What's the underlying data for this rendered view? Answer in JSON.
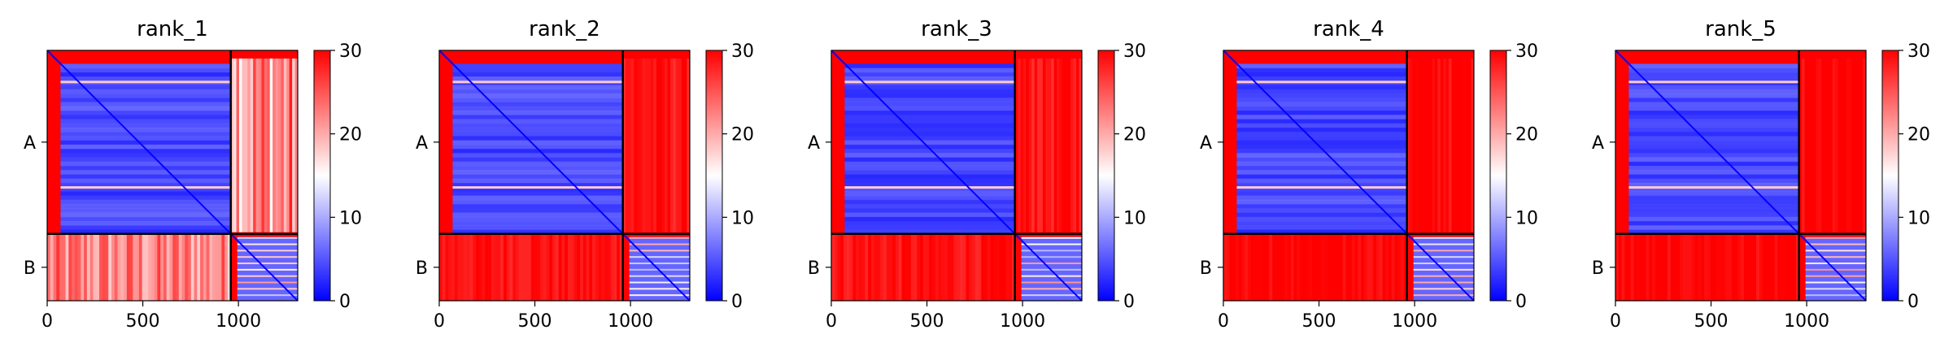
{
  "chart_data": {
    "type": "heatmap",
    "colormap": {
      "name": "bwr",
      "stops": [
        "#0000ff",
        "#ffffff",
        "#ff0000"
      ]
    },
    "color_range": [
      0,
      30
    ],
    "colorbar_ticks": [
      "0",
      "10",
      "20",
      "30"
    ],
    "x_ticks": [
      0,
      500,
      1000
    ],
    "x_range": [
      0,
      1310
    ],
    "segments": [
      {
        "label": "A",
        "start": 0,
        "end": 960
      },
      {
        "label": "B",
        "start": 960,
        "end": 1310
      }
    ],
    "panels": [
      {
        "title": "rank_1",
        "inter_chain_level": 22
      },
      {
        "title": "rank_2",
        "inter_chain_level": 29
      },
      {
        "title": "rank_3",
        "inter_chain_level": 29
      },
      {
        "title": "rank_4",
        "inter_chain_level": 30
      },
      {
        "title": "rank_5",
        "inter_chain_level": 30
      }
    ]
  }
}
